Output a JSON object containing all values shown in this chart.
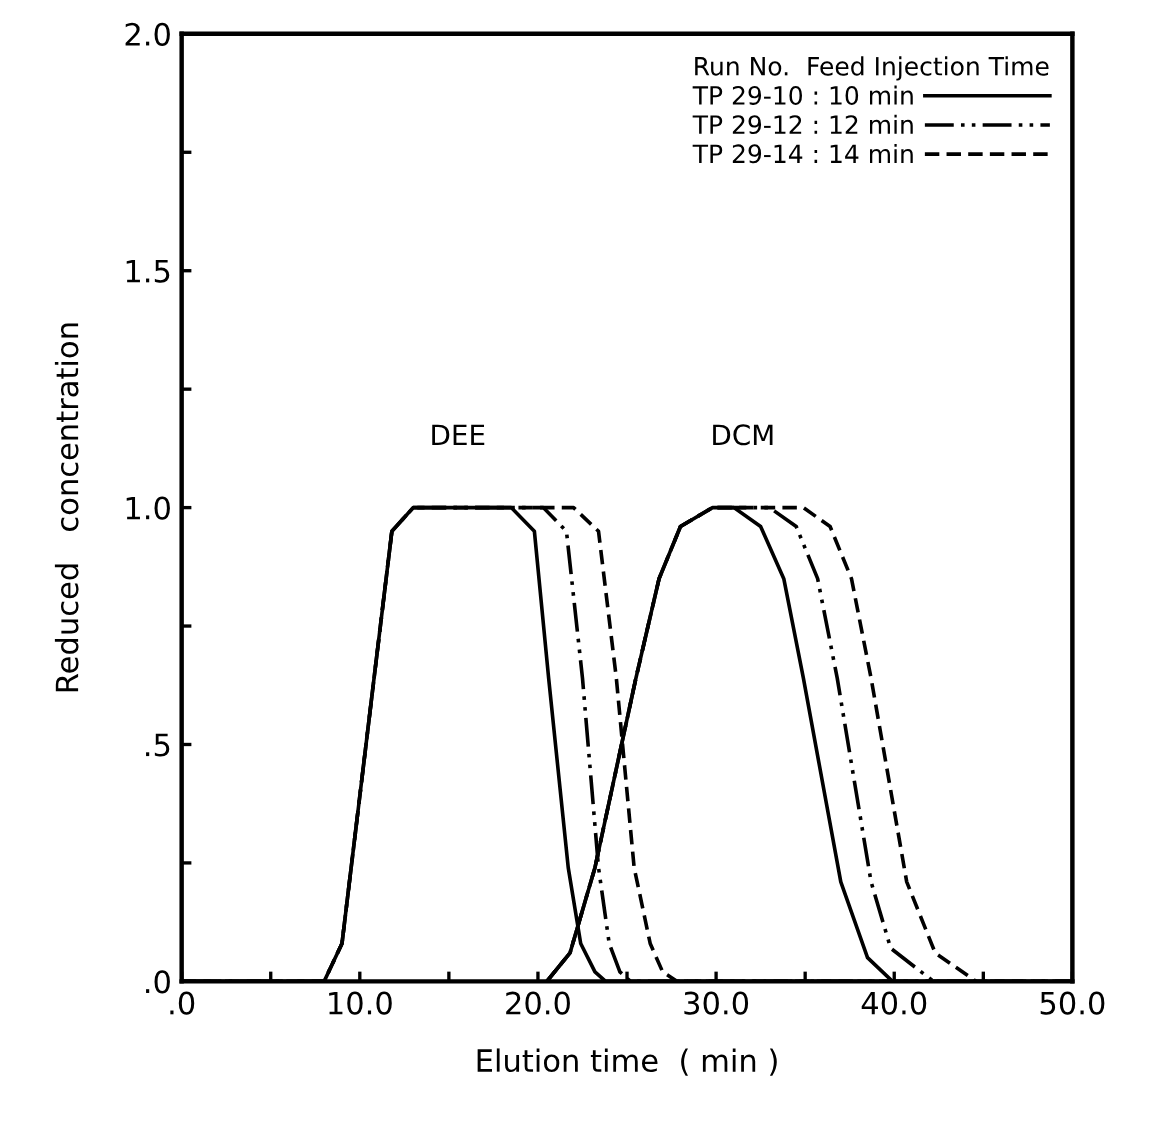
{
  "chart_data": {
    "type": "line",
    "xlabel": "Elution time  ( min )",
    "ylabel": "Reduced   concentration",
    "legend_title": "Run No.  Feed Injection Time",
    "legend": "top right",
    "grid": false,
    "marker": "none",
    "xlim": [
      0,
      50
    ],
    "ylim": [
      0,
      2.0
    ],
    "xticks": [
      {
        "value": 0,
        "label": ".0"
      },
      {
        "value": 5,
        "label": null
      },
      {
        "value": 10,
        "label": "10.0"
      },
      {
        "value": 15,
        "label": null
      },
      {
        "value": 20,
        "label": "20.0"
      },
      {
        "value": 25,
        "label": null
      },
      {
        "value": 30,
        "label": "30.0"
      },
      {
        "value": 35,
        "label": null
      },
      {
        "value": 40,
        "label": "40.0"
      },
      {
        "value": 45,
        "label": null
      },
      {
        "value": 50,
        "label": "50.0"
      }
    ],
    "yticks": [
      {
        "value": 0,
        "label": ".0"
      },
      {
        "value": 0.25,
        "label": null
      },
      {
        "value": 0.5,
        "label": ".5"
      },
      {
        "value": 0.75,
        "label": null
      },
      {
        "value": 1.0,
        "label": "1.0"
      },
      {
        "value": 1.25,
        "label": null
      },
      {
        "value": 1.5,
        "label": "1.5"
      },
      {
        "value": 1.75,
        "label": null
      },
      {
        "value": 2.0,
        "label": "2.0"
      }
    ],
    "annotations": [
      "DEE",
      "DCM"
    ],
    "series": [
      {
        "name": "TP 29-10 : 10 min",
        "color": "#000000",
        "line_style": "solid",
        "x": [
          0,
          8.0,
          9.0,
          10.8,
          11.8,
          13.0,
          18.5,
          19.8,
          20.6,
          21.7,
          22.4,
          23.2,
          23.8,
          50
        ],
        "values": [
          0,
          0,
          0.08,
          0.64,
          0.95,
          1.0,
          1.0,
          0.95,
          0.64,
          0.24,
          0.08,
          0.02,
          0,
          0
        ]
      },
      {
        "name": "TP 29-12 : 12 min",
        "color": "#000000",
        "line_style": "dashdot",
        "x": [
          0,
          8.0,
          9.0,
          10.8,
          11.8,
          13.0,
          20.3,
          21.6,
          22.5,
          23.4,
          24.0,
          24.6,
          25.2,
          50
        ],
        "values": [
          0,
          0,
          0.08,
          0.64,
          0.95,
          1.0,
          1.0,
          0.95,
          0.64,
          0.24,
          0.08,
          0.02,
          0,
          0
        ]
      },
      {
        "name": "TP 29-14 : 14 min",
        "color": "#000000",
        "line_style": "dashed",
        "x": [
          0,
          8.0,
          9.0,
          10.8,
          11.8,
          13.0,
          22.0,
          23.4,
          24.4,
          25.4,
          26.3,
          27.0,
          27.8,
          50
        ],
        "values": [
          0,
          0,
          0.08,
          0.64,
          0.95,
          1.0,
          1.0,
          0.95,
          0.64,
          0.24,
          0.08,
          0.02,
          0,
          0
        ]
      },
      {
        "color": "#000000",
        "line_style": "solid",
        "x": [
          20.5,
          21.8,
          23.2,
          25.5,
          26.8,
          28.0,
          29.8,
          31.0,
          32.5,
          33.8,
          34.9,
          37.0,
          38.5,
          39.9
        ],
        "values": [
          0,
          0.06,
          0.24,
          0.64,
          0.85,
          0.96,
          1.0,
          1.0,
          0.96,
          0.85,
          0.64,
          0.21,
          0.05,
          0
        ]
      },
      {
        "color": "#000000",
        "line_style": "dashdot",
        "x": [
          20.5,
          21.8,
          23.2,
          25.5,
          26.8,
          28.0,
          29.8,
          33.0,
          34.5,
          35.7,
          36.8,
          38.7,
          39.8,
          42.2
        ],
        "values": [
          0,
          0.06,
          0.24,
          0.64,
          0.85,
          0.96,
          1.0,
          1.0,
          0.96,
          0.85,
          0.64,
          0.21,
          0.07,
          0
        ]
      },
      {
        "color": "#000000",
        "line_style": "dashed",
        "x": [
          20.5,
          21.8,
          23.2,
          25.5,
          26.8,
          28.0,
          29.8,
          34.9,
          36.4,
          37.6,
          38.7,
          40.7,
          42.3,
          44.6
        ],
        "values": [
          0,
          0.06,
          0.24,
          0.64,
          0.85,
          0.96,
          1.0,
          1.0,
          0.96,
          0.85,
          0.64,
          0.21,
          0.06,
          0
        ]
      }
    ]
  }
}
